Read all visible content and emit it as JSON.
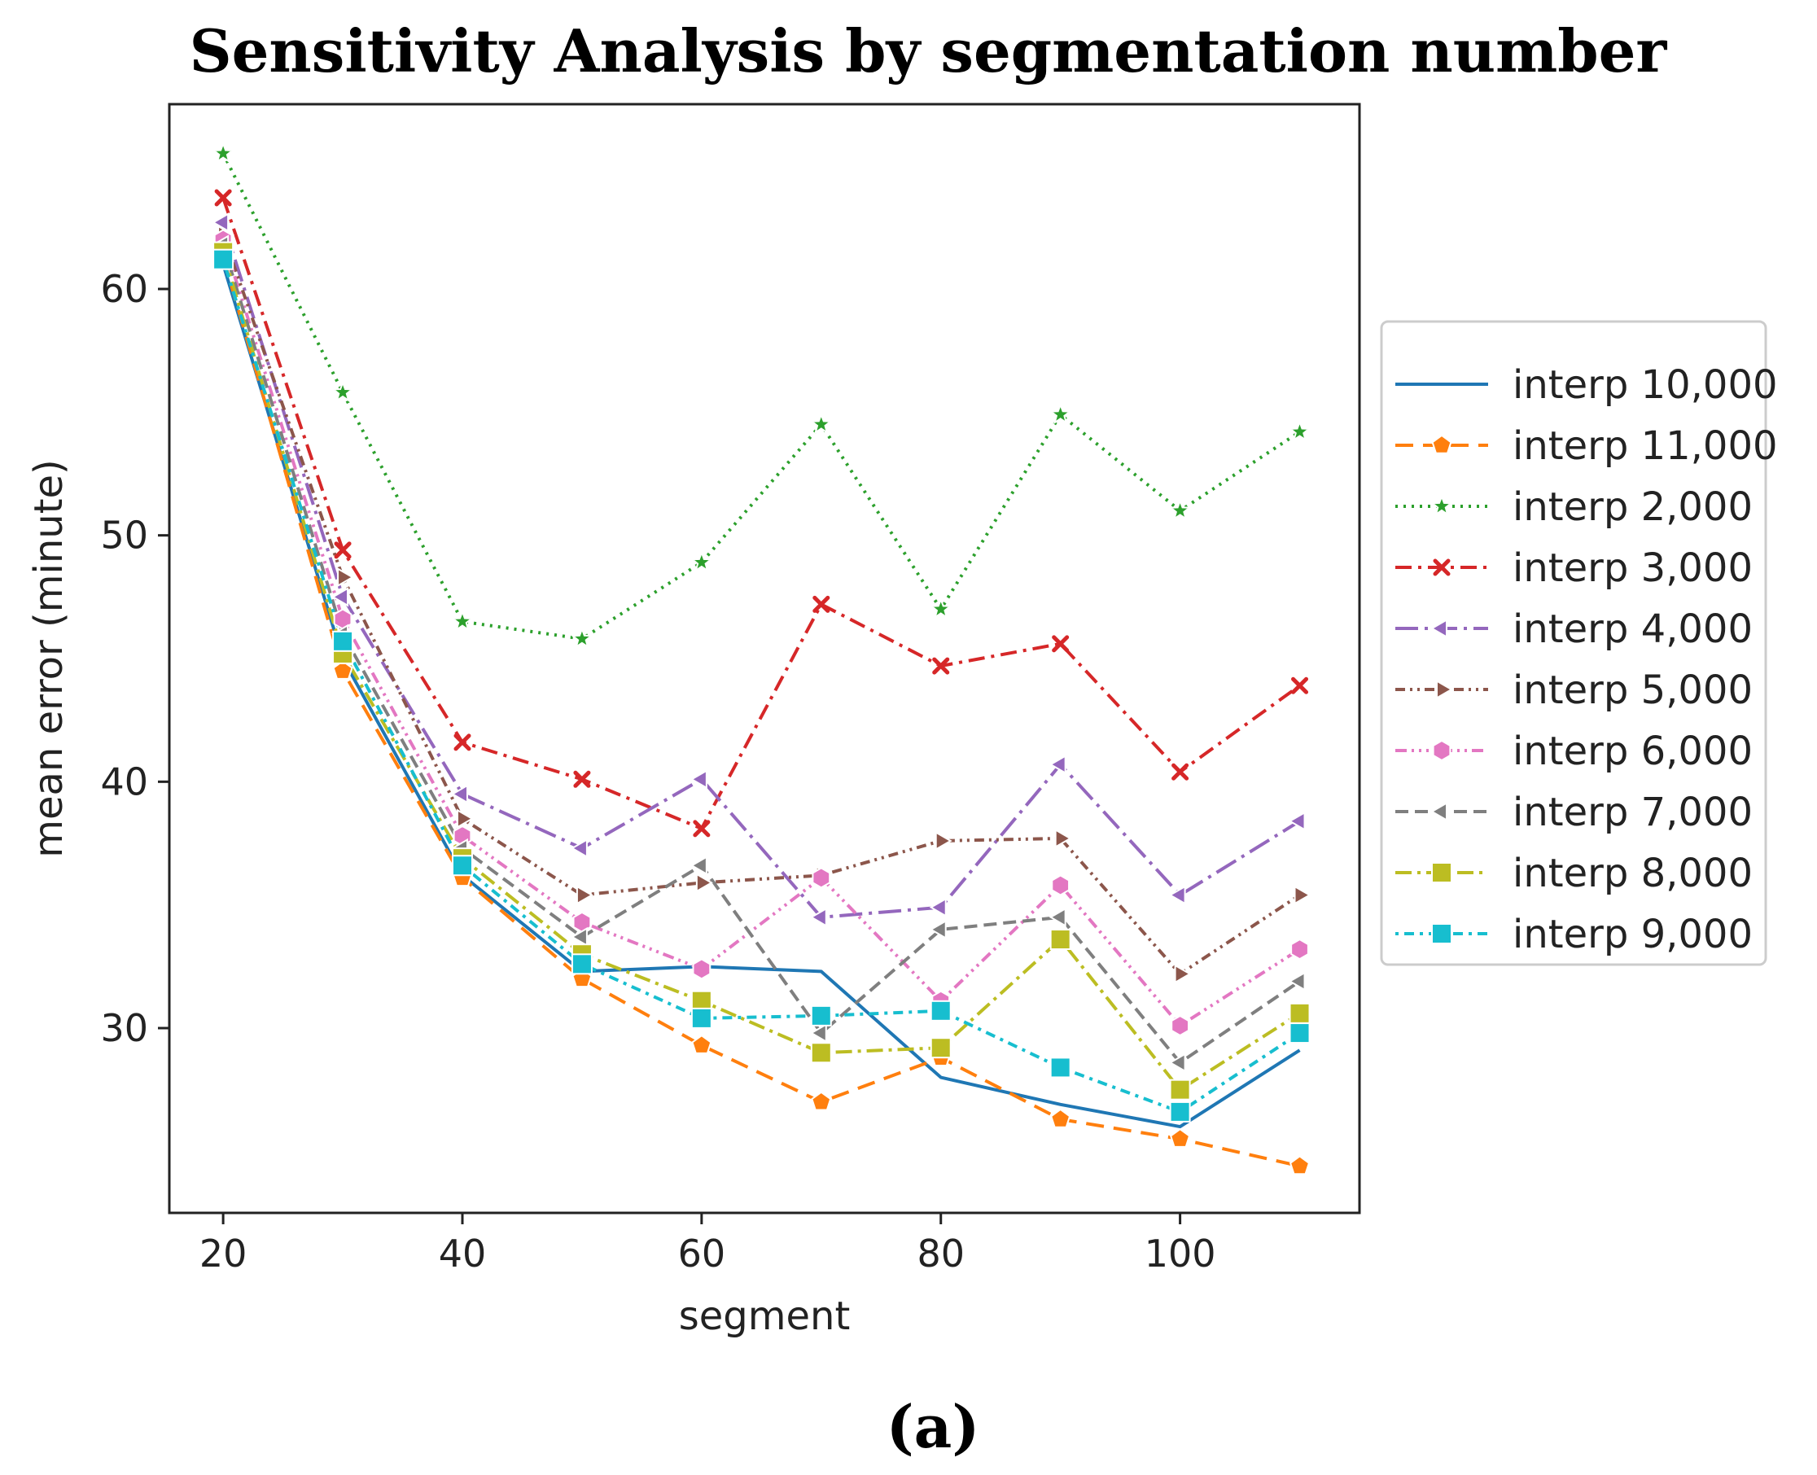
{
  "chart_data": {
    "type": "line",
    "title": "Sensitivity Analysis by segmentation number",
    "xlabel": "segment",
    "ylabel": "mean error (minute)",
    "caption": "(a)",
    "x": [
      20,
      30,
      40,
      50,
      60,
      70,
      80,
      90,
      100,
      110
    ],
    "xlim": [
      15.5,
      115
    ],
    "ylim": [
      22.5,
      67.5
    ],
    "xticks": [
      20,
      40,
      60,
      80,
      100
    ],
    "yticks": [
      30,
      40,
      50,
      60
    ],
    "legend_position": "outside-right",
    "series": [
      {
        "name": "interp 10,000",
        "color": "#1f77b4",
        "dash": "",
        "marker": "none",
        "values": [
          61.0,
          45.0,
          36.2,
          32.3,
          32.5,
          32.3,
          28.0,
          26.9,
          26.0,
          29.1
        ]
      },
      {
        "name": "interp 11,000",
        "color": "#ff7f0e",
        "dash": "22,12",
        "marker": "pentagon",
        "values": [
          61.3,
          44.5,
          36.1,
          32.0,
          29.3,
          27.0,
          28.8,
          26.3,
          25.5,
          24.4
        ]
      },
      {
        "name": "interp 2,000",
        "color": "#2ca02c",
        "dash": "3,7",
        "marker": "star",
        "values": [
          65.5,
          55.8,
          46.5,
          45.8,
          48.9,
          54.5,
          47.0,
          54.9,
          51.0,
          54.2
        ]
      },
      {
        "name": "interp 3,000",
        "color": "#d62728",
        "dash": "20,8,4,8",
        "marker": "x",
        "values": [
          63.7,
          49.4,
          41.6,
          40.1,
          38.1,
          47.2,
          44.7,
          45.6,
          40.4,
          43.9
        ]
      },
      {
        "name": "interp 4,000",
        "color": "#9467bd",
        "dash": "28,8,4,8",
        "marker": "triangle-left",
        "values": [
          62.7,
          47.5,
          39.5,
          37.3,
          40.1,
          34.5,
          34.9,
          40.7,
          35.4,
          38.4
        ]
      },
      {
        "name": "interp 5,000",
        "color": "#8c564b",
        "dash": "12,6,3,6,3,6",
        "marker": "triangle-right",
        "values": [
          62.2,
          48.3,
          38.5,
          35.4,
          35.9,
          36.2,
          37.6,
          37.7,
          32.2,
          35.4
        ]
      },
      {
        "name": "interp 6,000",
        "color": "#e377c2",
        "dash": "14,6,3,6,3,6,3,6",
        "marker": "hexagon",
        "values": [
          62.0,
          46.6,
          37.8,
          34.3,
          32.4,
          36.1,
          31.1,
          35.8,
          30.1,
          33.2
        ]
      },
      {
        "name": "interp 7,000",
        "color": "#7f7f7f",
        "dash": "16,8",
        "marker": "triangle-left",
        "values": [
          61.8,
          46.0,
          37.3,
          33.7,
          36.6,
          29.8,
          34.0,
          34.5,
          28.6,
          31.9
        ]
      },
      {
        "name": "interp 8,000",
        "color": "#bcbd22",
        "dash": "20,7,4,7",
        "marker": "square",
        "values": [
          61.5,
          45.2,
          36.9,
          33.0,
          31.1,
          29.0,
          29.2,
          33.6,
          27.5,
          30.6
        ]
      },
      {
        "name": "interp 9,000",
        "color": "#17becf",
        "dash": "4,7,12,7",
        "marker": "square",
        "values": [
          61.2,
          45.7,
          36.6,
          32.6,
          30.4,
          30.5,
          30.7,
          28.4,
          26.6,
          29.8
        ]
      }
    ]
  }
}
